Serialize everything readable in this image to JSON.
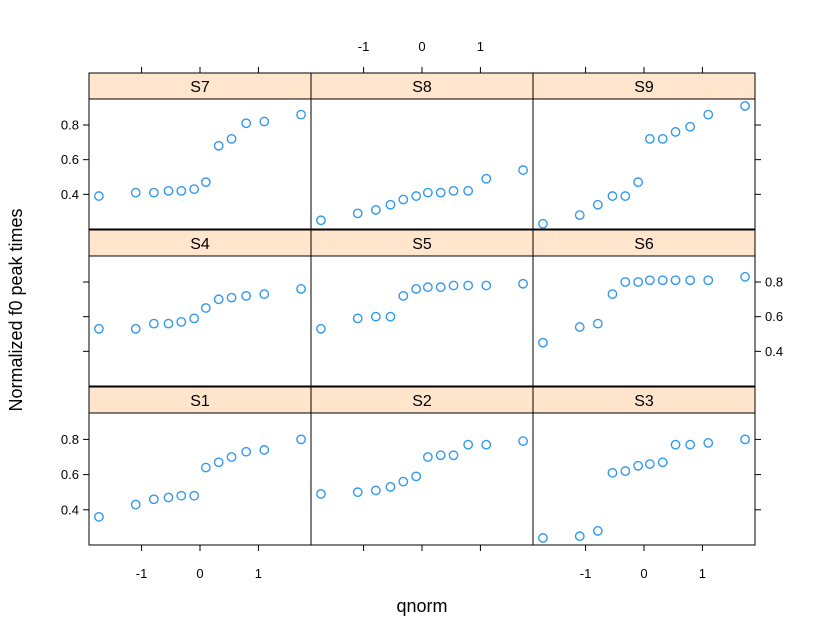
{
  "chart_data": {
    "type": "scatter",
    "subtype": "lattice-qqmath",
    "xlabel": "qnorm",
    "ylabel": "Normalized f0 peak times",
    "xlim": [
      -1.9,
      1.9
    ],
    "ylim": [
      0.2,
      0.95
    ],
    "x_ticks": [
      -1,
      0,
      1
    ],
    "y_ticks": [
      0.4,
      0.6,
      0.8
    ],
    "x_tick_labels": [
      "-1",
      "0",
      "1"
    ],
    "y_tick_labels": [
      "0.4",
      "0.6",
      "0.8"
    ],
    "layout": {
      "columns": 3,
      "rows": 3
    },
    "colors": {
      "point": "#3399ee",
      "strip": "#ffe5cc",
      "frame": "#000000"
    },
    "marker": "open-circle",
    "grid": false,
    "legend": "none",
    "x": [
      -1.73,
      -1.1,
      -0.79,
      -0.54,
      -0.32,
      -0.1,
      0.1,
      0.32,
      0.54,
      0.79,
      1.1,
      1.73
    ],
    "panels": [
      {
        "name": "S7",
        "values": [
          0.39,
          0.41,
          0.41,
          0.42,
          0.42,
          0.43,
          0.47,
          0.68,
          0.72,
          0.81,
          0.82,
          0.86
        ]
      },
      {
        "name": "S8",
        "values": [
          0.25,
          0.29,
          0.31,
          0.34,
          0.37,
          0.39,
          0.41,
          0.41,
          0.42,
          0.42,
          0.49,
          0.54
        ]
      },
      {
        "name": "S9",
        "values": [
          0.23,
          0.28,
          0.34,
          0.39,
          0.39,
          0.47,
          0.72,
          0.72,
          0.76,
          0.79,
          0.86,
          0.91
        ]
      },
      {
        "name": "S4",
        "values": [
          0.53,
          0.53,
          0.56,
          0.56,
          0.57,
          0.59,
          0.65,
          0.7,
          0.71,
          0.72,
          0.73,
          0.76
        ]
      },
      {
        "name": "S5",
        "values": [
          0.53,
          0.59,
          0.6,
          0.6,
          0.72,
          0.76,
          0.77,
          0.77,
          0.78,
          0.78,
          0.78,
          0.79
        ]
      },
      {
        "name": "S6",
        "values": [
          0.45,
          0.54,
          0.56,
          0.73,
          0.8,
          0.8,
          0.81,
          0.81,
          0.81,
          0.81,
          0.81,
          0.83
        ]
      },
      {
        "name": "S1",
        "values": [
          0.36,
          0.43,
          0.46,
          0.47,
          0.48,
          0.48,
          0.64,
          0.67,
          0.7,
          0.73,
          0.74,
          0.8
        ]
      },
      {
        "name": "S2",
        "values": [
          0.49,
          0.5,
          0.51,
          0.53,
          0.56,
          0.59,
          0.7,
          0.71,
          0.71,
          0.77,
          0.77,
          0.79
        ]
      },
      {
        "name": "S3",
        "values": [
          0.24,
          0.25,
          0.28,
          0.61,
          0.62,
          0.65,
          0.66,
          0.67,
          0.77,
          0.77,
          0.78,
          0.8
        ]
      }
    ]
  }
}
